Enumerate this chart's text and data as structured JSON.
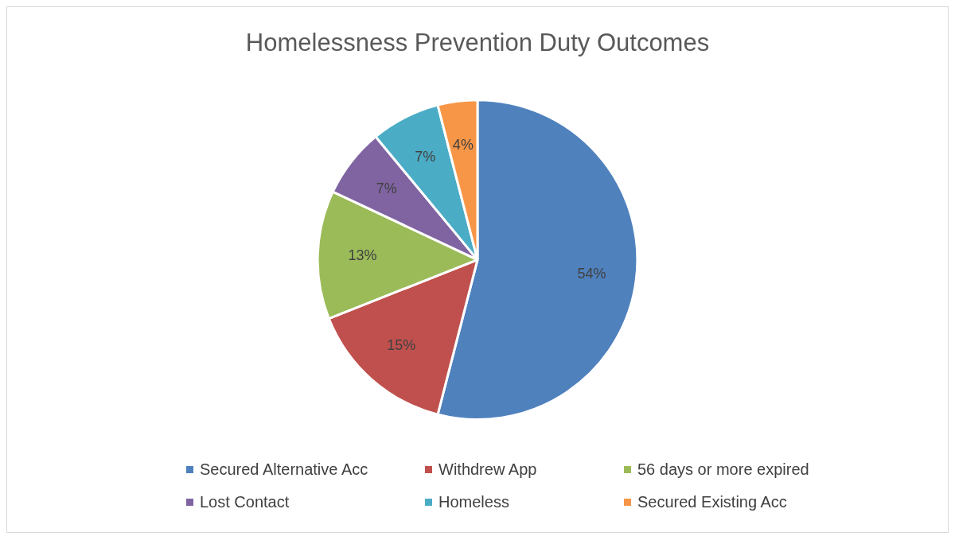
{
  "chart_data": {
    "type": "pie",
    "title": "Homelessness Prevention Duty Outcomes",
    "categories": [
      "Secured Alternative Acc",
      "Withdrew App",
      "56 days or more expired",
      "Lost Contact",
      "Homeless",
      "Secured Existing Acc"
    ],
    "values": [
      54,
      15,
      13,
      7,
      7,
      4
    ],
    "value_labels": [
      "54%",
      "15%",
      "13%",
      "7%",
      "7%",
      "4%"
    ],
    "colors": [
      "#4f81bd",
      "#c0504d",
      "#9bbb59",
      "#8064a2",
      "#4bacc6",
      "#f79646"
    ],
    "legend": "bottom"
  }
}
